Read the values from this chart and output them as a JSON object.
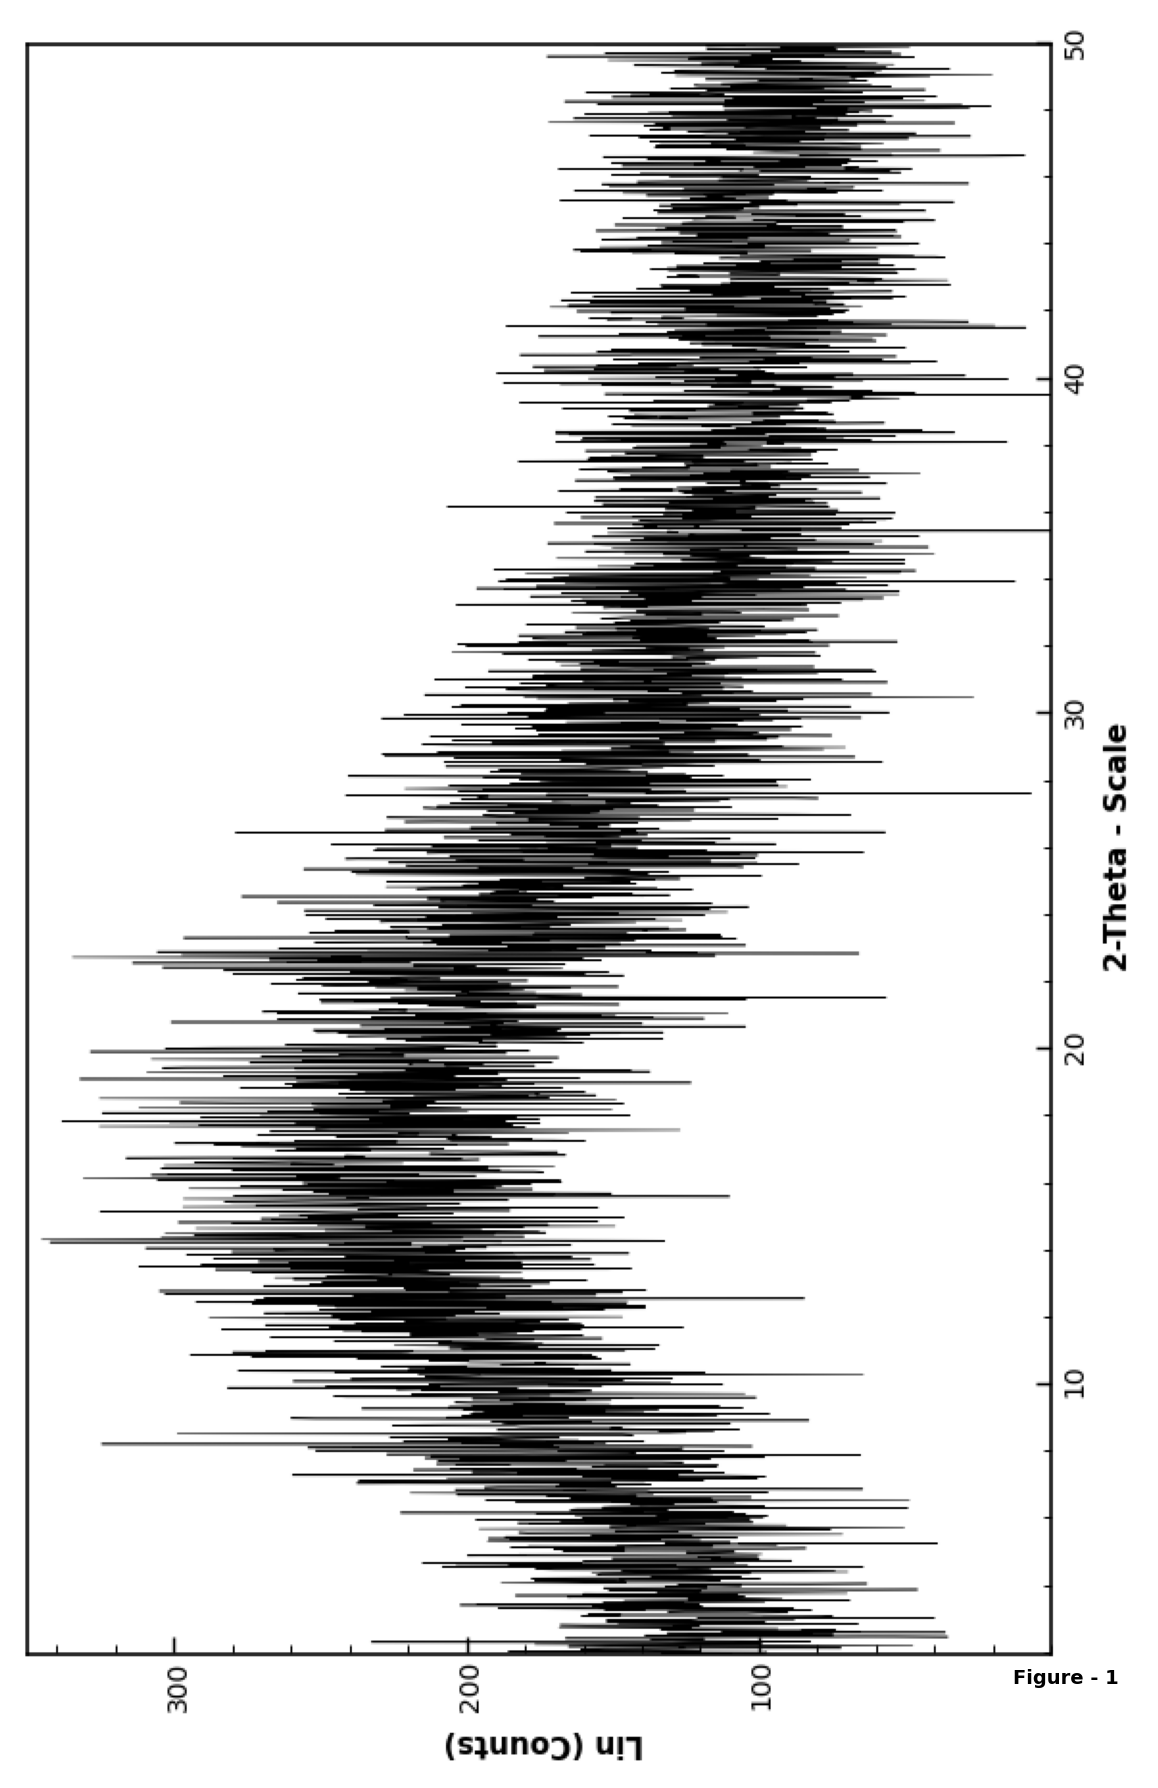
{
  "xlabel": "2-Theta - Scale",
  "ylabel": "Lin (Counts)",
  "figure_label": "Figure - 1",
  "xlim": [
    2,
    50
  ],
  "ylim": [
    0,
    350
  ],
  "xticks": [
    10,
    20,
    30,
    40,
    50
  ],
  "yticks": [
    100,
    200,
    300
  ],
  "line_color": "#000000",
  "background_color": "#ffffff",
  "inner_figsize": [
    10.0,
    6.5
  ],
  "inner_dpi": 100,
  "outer_figsize": [
    13.89,
    20.1
  ],
  "outer_dpi": 100,
  "seed": 12345
}
